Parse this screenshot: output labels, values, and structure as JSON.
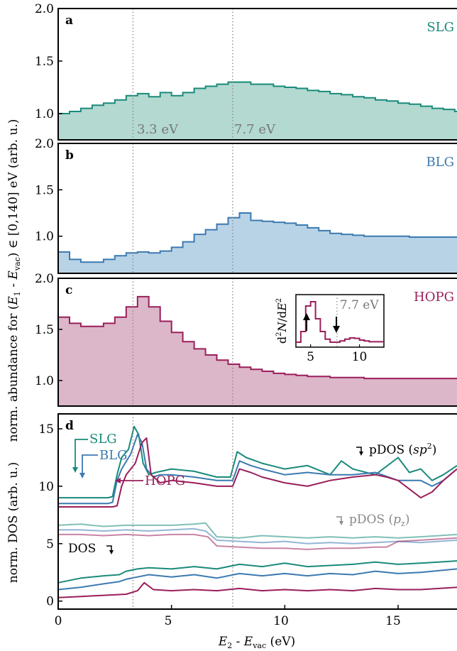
{
  "figure": {
    "ylabel_top": "norm. abundance for (E₁ - E_vac) ∈ [0,140] eV (arb. u.)",
    "ylabel_top_parts": [
      "norm. abundance for (",
      "E",
      "1",
      " - ",
      "E",
      "vac",
      ") ∈ [0,140] eV (arb. u.)"
    ],
    "ylabel_bottom": "norm. DOS (arb. u.)",
    "xlabel": "E₂ - E_vac (eV)",
    "xlabel_parts": [
      "E",
      "2",
      " - ",
      "E",
      "vac",
      " (eV)"
    ],
    "x_ticks": [
      "0",
      "5",
      "10",
      "15"
    ],
    "vlines": [
      3.3,
      7.7
    ],
    "colors": {
      "slg": "#1a8a7a",
      "blg": "#3c7ab0",
      "hopg": "#9a1f5a",
      "frame": "#000000",
      "vline": "#888888"
    }
  },
  "chart_data": [
    {
      "type": "area",
      "panel": "a",
      "name": "SLG",
      "ylim": [
        0.75,
        2.0
      ],
      "y_ticks": [
        "1.0",
        "1.5",
        "2.0"
      ],
      "xlim": [
        0,
        17.6
      ],
      "annotations": [
        "3.3 eV",
        "7.7 eV"
      ],
      "x": [
        0.0,
        0.5,
        1.0,
        1.5,
        2.0,
        2.5,
        3.0,
        3.5,
        4.0,
        4.5,
        5.0,
        5.5,
        6.0,
        6.5,
        7.0,
        7.5,
        8.0,
        8.5,
        9.0,
        9.5,
        10.0,
        10.5,
        11.0,
        11.5,
        12.0,
        12.5,
        13.0,
        13.5,
        14.0,
        14.5,
        15.0,
        15.5,
        16.0,
        16.5,
        17.0,
        17.5
      ],
      "values": [
        1.0,
        1.02,
        1.05,
        1.08,
        1.1,
        1.13,
        1.17,
        1.19,
        1.16,
        1.2,
        1.17,
        1.2,
        1.24,
        1.26,
        1.28,
        1.3,
        1.3,
        1.28,
        1.28,
        1.26,
        1.25,
        1.24,
        1.22,
        1.21,
        1.19,
        1.18,
        1.16,
        1.15,
        1.13,
        1.12,
        1.1,
        1.09,
        1.07,
        1.05,
        1.04,
        1.02
      ]
    },
    {
      "type": "area",
      "panel": "b",
      "name": "BLG",
      "ylim": [
        0.6,
        2.0
      ],
      "y_ticks": [
        "1.0",
        "1.5",
        "2.0"
      ],
      "xlim": [
        0,
        17.6
      ],
      "x": [
        0.0,
        0.5,
        1.0,
        1.5,
        2.0,
        2.5,
        3.0,
        3.5,
        4.0,
        4.5,
        5.0,
        5.5,
        6.0,
        6.5,
        7.0,
        7.5,
        8.0,
        8.5,
        9.0,
        9.5,
        10.0,
        10.5,
        11.0,
        11.5,
        12.0,
        12.5,
        13.0,
        13.5,
        14.0,
        14.5,
        15.0,
        15.5,
        16.0,
        16.5,
        17.0,
        17.5
      ],
      "values": [
        0.83,
        0.75,
        0.72,
        0.72,
        0.75,
        0.79,
        0.82,
        0.83,
        0.82,
        0.84,
        0.88,
        0.94,
        1.02,
        1.07,
        1.13,
        1.2,
        1.25,
        1.17,
        1.16,
        1.15,
        1.14,
        1.12,
        1.09,
        1.06,
        1.03,
        1.02,
        1.01,
        1.0,
        1.0,
        1.0,
        1.0,
        0.99,
        0.99,
        0.99,
        0.99,
        0.99
      ]
    },
    {
      "type": "area",
      "panel": "c",
      "name": "HOPG",
      "ylim": [
        0.75,
        2.0
      ],
      "y_ticks": [
        "1.0",
        "1.5",
        "2.0"
      ],
      "xlim": [
        0,
        17.6
      ],
      "x": [
        0.0,
        0.5,
        1.0,
        1.5,
        2.0,
        2.5,
        3.0,
        3.5,
        4.0,
        4.5,
        5.0,
        5.5,
        6.0,
        6.5,
        7.0,
        7.5,
        8.0,
        8.5,
        9.0,
        9.5,
        10.0,
        10.5,
        11.0,
        11.5,
        12.0,
        12.5,
        13.0,
        13.5,
        14.0,
        14.5,
        15.0,
        15.5,
        16.0,
        16.5,
        17.0,
        17.5
      ],
      "values": [
        1.62,
        1.56,
        1.53,
        1.53,
        1.56,
        1.62,
        1.72,
        1.82,
        1.72,
        1.58,
        1.47,
        1.38,
        1.31,
        1.25,
        1.2,
        1.16,
        1.13,
        1.11,
        1.09,
        1.07,
        1.06,
        1.05,
        1.04,
        1.04,
        1.03,
        1.03,
        1.03,
        1.02,
        1.02,
        1.02,
        1.02,
        1.02,
        1.02,
        1.02,
        1.02,
        1.02
      ],
      "inset": {
        "ylabel": "d²N/dE²",
        "ylabel_parts": [
          "d",
          "2",
          "N",
          "/d",
          "E",
          "2"
        ],
        "x_ticks": [
          "5",
          "10"
        ],
        "annotation": "7.7 eV",
        "xlim": [
          3.5,
          12.5
        ],
        "x": [
          3.5,
          4.0,
          4.5,
          5.0,
          5.5,
          6.0,
          6.5,
          7.0,
          7.5,
          8.0,
          8.5,
          9.0,
          9.5,
          10.0,
          10.5,
          11.0,
          11.5,
          12.0,
          12.5
        ],
        "values": [
          0.05,
          0.3,
          0.9,
          1.0,
          0.6,
          0.3,
          0.12,
          0.05,
          0.05,
          0.08,
          0.12,
          0.15,
          0.14,
          0.1,
          0.08,
          0.06,
          0.06,
          0.06,
          0.06
        ]
      }
    },
    {
      "type": "line",
      "panel": "d",
      "ylim": [
        -0.7,
        16.3
      ],
      "y_ticks": [
        "0",
        "5",
        "10",
        "15"
      ],
      "xlim": [
        0,
        17.6
      ],
      "labels": {
        "slg": "SLG",
        "blg": "BLG",
        "hopg": "HOPG",
        "dos": "DOS"
      },
      "label_parts": {
        "pdos_sp2": [
          "pDOS (",
          "sp",
          "2",
          ")"
        ],
        "pdos_pz": [
          "pDOS (",
          "p",
          "z",
          ")"
        ]
      },
      "series": [
        {
          "name": "SLG",
          "group": "pdos_sp2",
          "x": [
            0,
            2.2,
            2.4,
            2.6,
            2.8,
            3.1,
            3.35,
            3.55,
            3.75,
            4.0,
            4.3,
            5.0,
            6.0,
            7.0,
            7.6,
            7.9,
            8.3,
            9.0,
            10.0,
            11.0,
            12.0,
            12.5,
            13.0,
            14.0,
            15.0,
            15.5,
            16.0,
            16.5,
            17.0,
            17.6
          ],
          "values": [
            9.0,
            9.0,
            9.1,
            11.0,
            12.5,
            13.2,
            15.2,
            14.5,
            12.0,
            11.0,
            11.2,
            11.5,
            11.3,
            10.8,
            10.8,
            13.0,
            12.5,
            12.0,
            11.5,
            11.8,
            11.0,
            12.2,
            11.5,
            11.0,
            12.5,
            11.2,
            11.5,
            10.5,
            11.0,
            11.8
          ]
        },
        {
          "name": "BLG",
          "group": "pdos_sp2",
          "x": [
            0,
            2.2,
            2.4,
            2.6,
            2.8,
            3.2,
            3.5,
            3.7,
            3.9,
            4.2,
            4.5,
            5.0,
            6.0,
            7.0,
            7.7,
            8.0,
            8.5,
            9.0,
            10.0,
            11.0,
            12.0,
            13.0,
            14.0,
            15.0,
            16.0,
            16.5,
            17.0,
            17.6
          ],
          "values": [
            8.5,
            8.5,
            8.6,
            10.5,
            11.5,
            12.8,
            14.5,
            13.8,
            11.5,
            10.8,
            11.0,
            11.0,
            10.8,
            10.5,
            10.5,
            12.2,
            11.8,
            11.5,
            11.0,
            11.2,
            11.0,
            11.0,
            11.2,
            10.5,
            10.5,
            10.0,
            10.5,
            11.5
          ]
        },
        {
          "name": "HOPG",
          "group": "pdos_sp2",
          "x": [
            0,
            2.4,
            2.6,
            2.8,
            3.0,
            3.4,
            3.7,
            3.9,
            4.1,
            4.5,
            5.0,
            6.0,
            7.0,
            7.7,
            8.0,
            8.5,
            9.0,
            10.0,
            11.0,
            12.0,
            13.0,
            14.0,
            14.5,
            15.0,
            16.0,
            16.5,
            17.0,
            17.6
          ],
          "values": [
            8.2,
            8.2,
            8.3,
            10.0,
            11.0,
            12.0,
            13.8,
            14.2,
            11.0,
            10.3,
            10.5,
            10.3,
            10.0,
            10.0,
            11.5,
            11.2,
            10.8,
            10.3,
            10.0,
            10.5,
            10.8,
            11.0,
            10.8,
            10.5,
            9.0,
            9.5,
            10.5,
            11.5
          ]
        },
        {
          "name": "SLG",
          "group": "pdos_pz",
          "x": [
            0,
            1.0,
            2.0,
            3.0,
            4.0,
            5.0,
            6.0,
            6.5,
            7.0,
            8.0,
            9.0,
            10.0,
            11.0,
            12.0,
            13.0,
            14.0,
            15.0,
            16.0,
            17.6
          ],
          "values": [
            6.6,
            6.7,
            6.5,
            6.6,
            6.6,
            6.6,
            6.7,
            6.8,
            5.6,
            5.5,
            5.7,
            5.6,
            5.5,
            5.6,
            5.5,
            5.6,
            5.5,
            5.6,
            5.8
          ]
        },
        {
          "name": "BLG",
          "group": "pdos_pz",
          "x": [
            0,
            1.0,
            2.0,
            3.0,
            4.0,
            5.0,
            6.0,
            6.5,
            7.0,
            8.0,
            9.0,
            10.0,
            11.0,
            12.0,
            13.0,
            14.0,
            15.0,
            16.0,
            17.6
          ],
          "values": [
            6.2,
            6.2,
            6.1,
            6.2,
            6.1,
            6.2,
            6.3,
            6.1,
            5.3,
            5.2,
            5.1,
            5.2,
            5.0,
            5.1,
            5.0,
            5.1,
            5.2,
            5.1,
            5.3
          ]
        },
        {
          "name": "HOPG",
          "group": "pdos_pz",
          "x": [
            0,
            1.0,
            2.0,
            3.0,
            4.0,
            5.0,
            6.0,
            6.6,
            7.0,
            8.0,
            9.0,
            10.0,
            11.0,
            12.0,
            13.0,
            14.0,
            14.5,
            15.0,
            16.0,
            17.6
          ],
          "values": [
            5.8,
            5.8,
            5.7,
            5.8,
            5.7,
            5.8,
            5.8,
            5.6,
            4.8,
            4.7,
            4.6,
            4.6,
            4.5,
            4.6,
            4.6,
            4.7,
            4.7,
            5.2,
            5.3,
            5.5
          ]
        },
        {
          "name": "SLG",
          "group": "dos",
          "x": [
            0,
            1.0,
            2.0,
            2.7,
            3.0,
            3.5,
            4.0,
            5.0,
            6.0,
            7.0,
            8.0,
            9.0,
            10.0,
            11.0,
            12.0,
            13.0,
            14.0,
            15.0,
            16.0,
            17.6
          ],
          "values": [
            1.6,
            2.0,
            2.2,
            2.3,
            2.6,
            2.8,
            2.9,
            2.8,
            3.0,
            2.8,
            3.2,
            3.0,
            3.3,
            3.0,
            3.1,
            3.2,
            3.4,
            3.2,
            3.3,
            3.5
          ]
        },
        {
          "name": "BLG",
          "group": "dos",
          "x": [
            0,
            1.0,
            2.0,
            2.7,
            3.0,
            3.5,
            4.0,
            5.0,
            6.0,
            7.0,
            8.0,
            9.0,
            10.0,
            11.0,
            12.0,
            13.0,
            14.0,
            15.0,
            16.0,
            17.6
          ],
          "values": [
            1.0,
            1.2,
            1.5,
            1.7,
            1.9,
            2.1,
            2.3,
            2.1,
            2.3,
            2.0,
            2.4,
            2.2,
            2.4,
            2.2,
            2.4,
            2.3,
            2.6,
            2.4,
            2.5,
            2.8
          ]
        },
        {
          "name": "HOPG",
          "group": "dos",
          "x": [
            0,
            1.0,
            2.0,
            3.0,
            3.5,
            3.8,
            4.2,
            5.0,
            6.0,
            7.0,
            8.0,
            9.0,
            10.0,
            11.0,
            12.0,
            13.0,
            14.0,
            15.0,
            16.0,
            17.6
          ],
          "values": [
            0.3,
            0.4,
            0.5,
            0.6,
            0.9,
            1.6,
            1.0,
            0.9,
            1.0,
            0.9,
            1.1,
            0.9,
            1.0,
            0.9,
            1.0,
            0.9,
            1.1,
            1.0,
            1.0,
            1.2
          ]
        }
      ]
    }
  ]
}
